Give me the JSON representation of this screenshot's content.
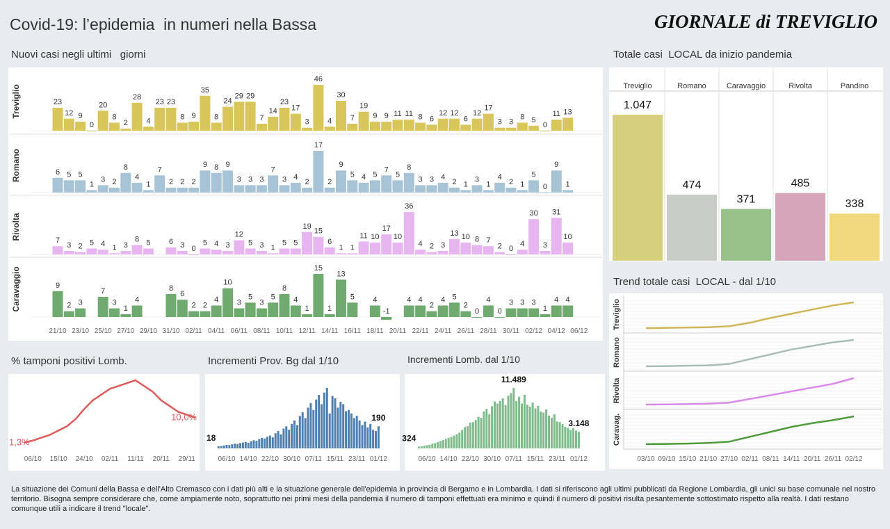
{
  "title": "Covid-19: l’epidemia  in numeri nella Bassa",
  "logo": "GIORNALE di TREVIGLIO",
  "footer": "La situazione dei Comuni della Bassa e dell'Alto Cremasco con i dati più alti e la situazione generale dell'epidemia in provincia di Bergamo e in Lombardia.  I dati si riferiscono agli ultimi pubblicati da Regione Lombardia, gli unici su base comunale nel  nostro territorio.  Bisogna sempre considerare che, come ampiamente noto, soprattutto nei primi mesi della pandemia il numero di tamponi effettuati era minimo e quindi il numero di positivi risulta pesantemente sottostimato rispetto alla realtà. I dati restano comunque utili a indicare il trend \"locale\".",
  "chart_data": [
    {
      "type": "bar",
      "title": "Nuovi casi negli ultimi   giorni",
      "categories": [
        "21/10",
        null,
        "23/10",
        null,
        "25/10",
        null,
        "27/10",
        null,
        "29/10",
        null,
        "31/10",
        null,
        "02/11",
        null,
        "04/11",
        null,
        "06/11",
        null,
        "08/11",
        null,
        "10/11",
        null,
        "12/11",
        null,
        "14/11",
        null,
        "16/11",
        null,
        "18/11",
        null,
        "20/11",
        null,
        "22/11",
        null,
        "24/11",
        null,
        "26/11",
        null,
        "28/11",
        null,
        "30/11",
        null,
        "02/12",
        null,
        "04/12",
        null,
        "06/12"
      ],
      "series": [
        {
          "name": "Treviglio",
          "color": "#d8c65a",
          "values": [
            23,
            12,
            9,
            0,
            20,
            8,
            2,
            28,
            4,
            23,
            23,
            8,
            9,
            35,
            8,
            24,
            29,
            29,
            7,
            14,
            23,
            17,
            3,
            46,
            4,
            30,
            7,
            19,
            9,
            9,
            11,
            11,
            8,
            6,
            12,
            12,
            6,
            12,
            17,
            3,
            3,
            8,
            5,
            0,
            11,
            13,
            null
          ]
        },
        {
          "name": "Romano",
          "color": "#a7c3d6",
          "values": [
            6,
            5,
            5,
            1,
            3,
            2,
            8,
            4,
            1,
            7,
            2,
            2,
            2,
            9,
            8,
            9,
            3,
            3,
            3,
            7,
            3,
            4,
            2,
            17,
            2,
            9,
            5,
            4,
            5,
            7,
            5,
            8,
            3,
            3,
            4,
            2,
            1,
            3,
            1,
            4,
            2,
            1,
            5,
            0,
            9,
            1,
            null
          ]
        },
        {
          "name": "Rivolta",
          "color": "#e7b6f0",
          "values": [
            7,
            3,
            2,
            5,
            4,
            1,
            3,
            8,
            5,
            null,
            6,
            3,
            0,
            5,
            4,
            3,
            12,
            5,
            3,
            1,
            5,
            5,
            19,
            15,
            6,
            1,
            1,
            11,
            10,
            17,
            10,
            36,
            4,
            2,
            3,
            13,
            10,
            8,
            7,
            2,
            0,
            4,
            30,
            3,
            31,
            10,
            null
          ]
        },
        {
          "name": "Caravaggio",
          "color": "#6fab6f",
          "values": [
            9,
            2,
            3,
            null,
            7,
            3,
            1,
            4,
            null,
            null,
            8,
            6,
            2,
            2,
            4,
            10,
            3,
            5,
            3,
            5,
            8,
            4,
            1,
            15,
            1,
            13,
            5,
            null,
            4,
            -1,
            null,
            4,
            4,
            2,
            4,
            5,
            2,
            0,
            4,
            0,
            3,
            3,
            3,
            1,
            4,
            4,
            null
          ]
        }
      ]
    },
    {
      "type": "bar",
      "title": "Totale casi  LOCAL da inizio pandemia",
      "categories": [
        "Treviglio",
        "Romano",
        "Caravaggio",
        "Rivolta",
        "Pandino"
      ],
      "values": [
        1047,
        474,
        371,
        485,
        338
      ],
      "value_labels": [
        "1.047",
        "474",
        "371",
        "485",
        "338"
      ],
      "colors": [
        "#d6cf7e",
        "#c8cdc8",
        "#97c38b",
        "#d5a6ba",
        "#f1d880"
      ]
    },
    {
      "type": "line",
      "title": "Trend totale casi  LOCAL - dal 1/10",
      "categories": [
        "03/10",
        "09/10",
        "15/10",
        "21/10",
        "27/10",
        "02/11",
        "08/11",
        "14/11",
        "20/11",
        "26/11",
        "02/12"
      ],
      "series": [
        {
          "name": "Treviglio",
          "color": "#cfb65a",
          "values": [
            610,
            615,
            620,
            625,
            640,
            700,
            780,
            850,
            920,
            990,
            1040
          ]
        },
        {
          "name": "Romano",
          "color": "#a9bdb3",
          "values": [
            250,
            252,
            255,
            258,
            270,
            310,
            350,
            390,
            420,
            450,
            470
          ]
        },
        {
          "name": "Rivolta",
          "color": "#d98ae8",
          "values": [
            190,
            192,
            195,
            200,
            210,
            250,
            290,
            330,
            370,
            410,
            470
          ]
        },
        {
          "name": "Caravag.",
          "color": "#4f9a3a",
          "values": [
            140,
            142,
            145,
            150,
            160,
            200,
            240,
            280,
            310,
            335,
            365
          ]
        }
      ]
    },
    {
      "type": "line",
      "title": "% tamponi positivi Lomb.",
      "color": "#e05a5a",
      "categories": [
        null,
        "06/10",
        null,
        null,
        "15/10",
        null,
        null,
        "24/10",
        null,
        null,
        "02/11",
        null,
        null,
        "11/11",
        null,
        null,
        "20/11",
        null,
        null,
        "29/11",
        null
      ],
      "values": [
        1.3,
        2,
        3,
        4,
        5.5,
        7,
        9.5,
        13,
        16,
        18,
        20,
        21,
        22,
        23,
        21,
        19,
        16,
        14,
        12,
        11,
        10
      ],
      "value_labels": [
        "1,3%",
        null,
        null,
        null,
        null,
        null,
        null,
        null,
        null,
        null,
        null,
        null,
        null,
        null,
        null,
        null,
        null,
        null,
        null,
        null,
        "10,0%"
      ]
    },
    {
      "type": "bar",
      "title": "Incrementi Prov. Bg dal 1/10",
      "color": "#4f80b0",
      "categories": [
        null,
        null,
        null,
        "06/10",
        null,
        null,
        null,
        null,
        null,
        null,
        null,
        "14/10",
        null,
        null,
        null,
        null,
        null,
        null,
        null,
        "22/10",
        null,
        null,
        null,
        null,
        null,
        null,
        null,
        "30/10",
        null,
        null,
        null,
        null,
        null,
        null,
        null,
        "07/11",
        null,
        null,
        null,
        null,
        null,
        null,
        null,
        "15/11",
        null,
        null,
        null,
        null,
        null,
        null,
        null,
        "23/11",
        null,
        null,
        null,
        null,
        null,
        null,
        null,
        "01/12"
      ],
      "values": [
        18,
        20,
        25,
        30,
        28,
        35,
        40,
        38,
        45,
        50,
        55,
        48,
        60,
        70,
        65,
        80,
        90,
        85,
        100,
        110,
        95,
        130,
        150,
        120,
        170,
        190,
        160,
        210,
        240,
        200,
        280,
        310,
        260,
        350,
        390,
        330,
        420,
        460,
        380,
        480,
        520,
        300,
        450,
        430,
        350,
        400,
        380,
        320,
        330,
        300,
        260,
        280,
        240,
        200,
        230,
        180,
        210,
        160,
        150,
        190
      ],
      "value_labels": [
        "18",
        null,
        null,
        null,
        null,
        null,
        null,
        null,
        null,
        null,
        null,
        null,
        null,
        null,
        null,
        null,
        null,
        null,
        null,
        null,
        null,
        null,
        null,
        null,
        null,
        null,
        null,
        null,
        null,
        null,
        null,
        null,
        null,
        null,
        null,
        null,
        null,
        null,
        null,
        null,
        null,
        null,
        null,
        null,
        null,
        null,
        null,
        null,
        null,
        null,
        null,
        null,
        null,
        null,
        null,
        null,
        null,
        null,
        null,
        "190"
      ]
    },
    {
      "type": "bar",
      "title": "Incrementi Lomb. dal 1/10",
      "color": "#80bb8c",
      "categories": [
        null,
        null,
        null,
        "06/10",
        null,
        null,
        null,
        null,
        null,
        null,
        null,
        "14/10",
        null,
        null,
        null,
        null,
        null,
        null,
        null,
        "22/10",
        null,
        null,
        null,
        null,
        null,
        null,
        null,
        "30/10",
        null,
        null,
        null,
        null,
        null,
        null,
        null,
        "07/11",
        null,
        null,
        null,
        null,
        null,
        null,
        null,
        "15/11",
        null,
        null,
        null,
        null,
        null,
        null,
        null,
        "23/11",
        null,
        null,
        null,
        null,
        null,
        null,
        null,
        "01/12"
      ],
      "values": [
        324,
        400,
        500,
        600,
        700,
        900,
        1000,
        1200,
        1400,
        1600,
        1800,
        2000,
        2200,
        2400,
        2700,
        3000,
        3500,
        4000,
        4200,
        4900,
        5000,
        5400,
        6000,
        5800,
        7000,
        7500,
        6500,
        8000,
        8900,
        8500,
        9000,
        9500,
        8200,
        10000,
        10500,
        11489,
        9000,
        9800,
        8500,
        10200,
        8300,
        7900,
        8700,
        7600,
        8100,
        7000,
        6800,
        7400,
        6200,
        5800,
        6500,
        5100,
        5000,
        4600,
        4100,
        3900,
        3500,
        3800,
        3400,
        3148
      ],
      "value_labels": [
        "324",
        null,
        null,
        null,
        null,
        null,
        null,
        null,
        null,
        null,
        null,
        null,
        null,
        null,
        null,
        null,
        null,
        null,
        null,
        null,
        null,
        null,
        null,
        null,
        null,
        null,
        null,
        null,
        null,
        null,
        null,
        null,
        null,
        null,
        null,
        "11.489",
        null,
        null,
        null,
        null,
        null,
        null,
        null,
        null,
        null,
        null,
        null,
        null,
        null,
        null,
        null,
        null,
        null,
        null,
        null,
        null,
        null,
        null,
        null,
        "3.148"
      ]
    }
  ]
}
